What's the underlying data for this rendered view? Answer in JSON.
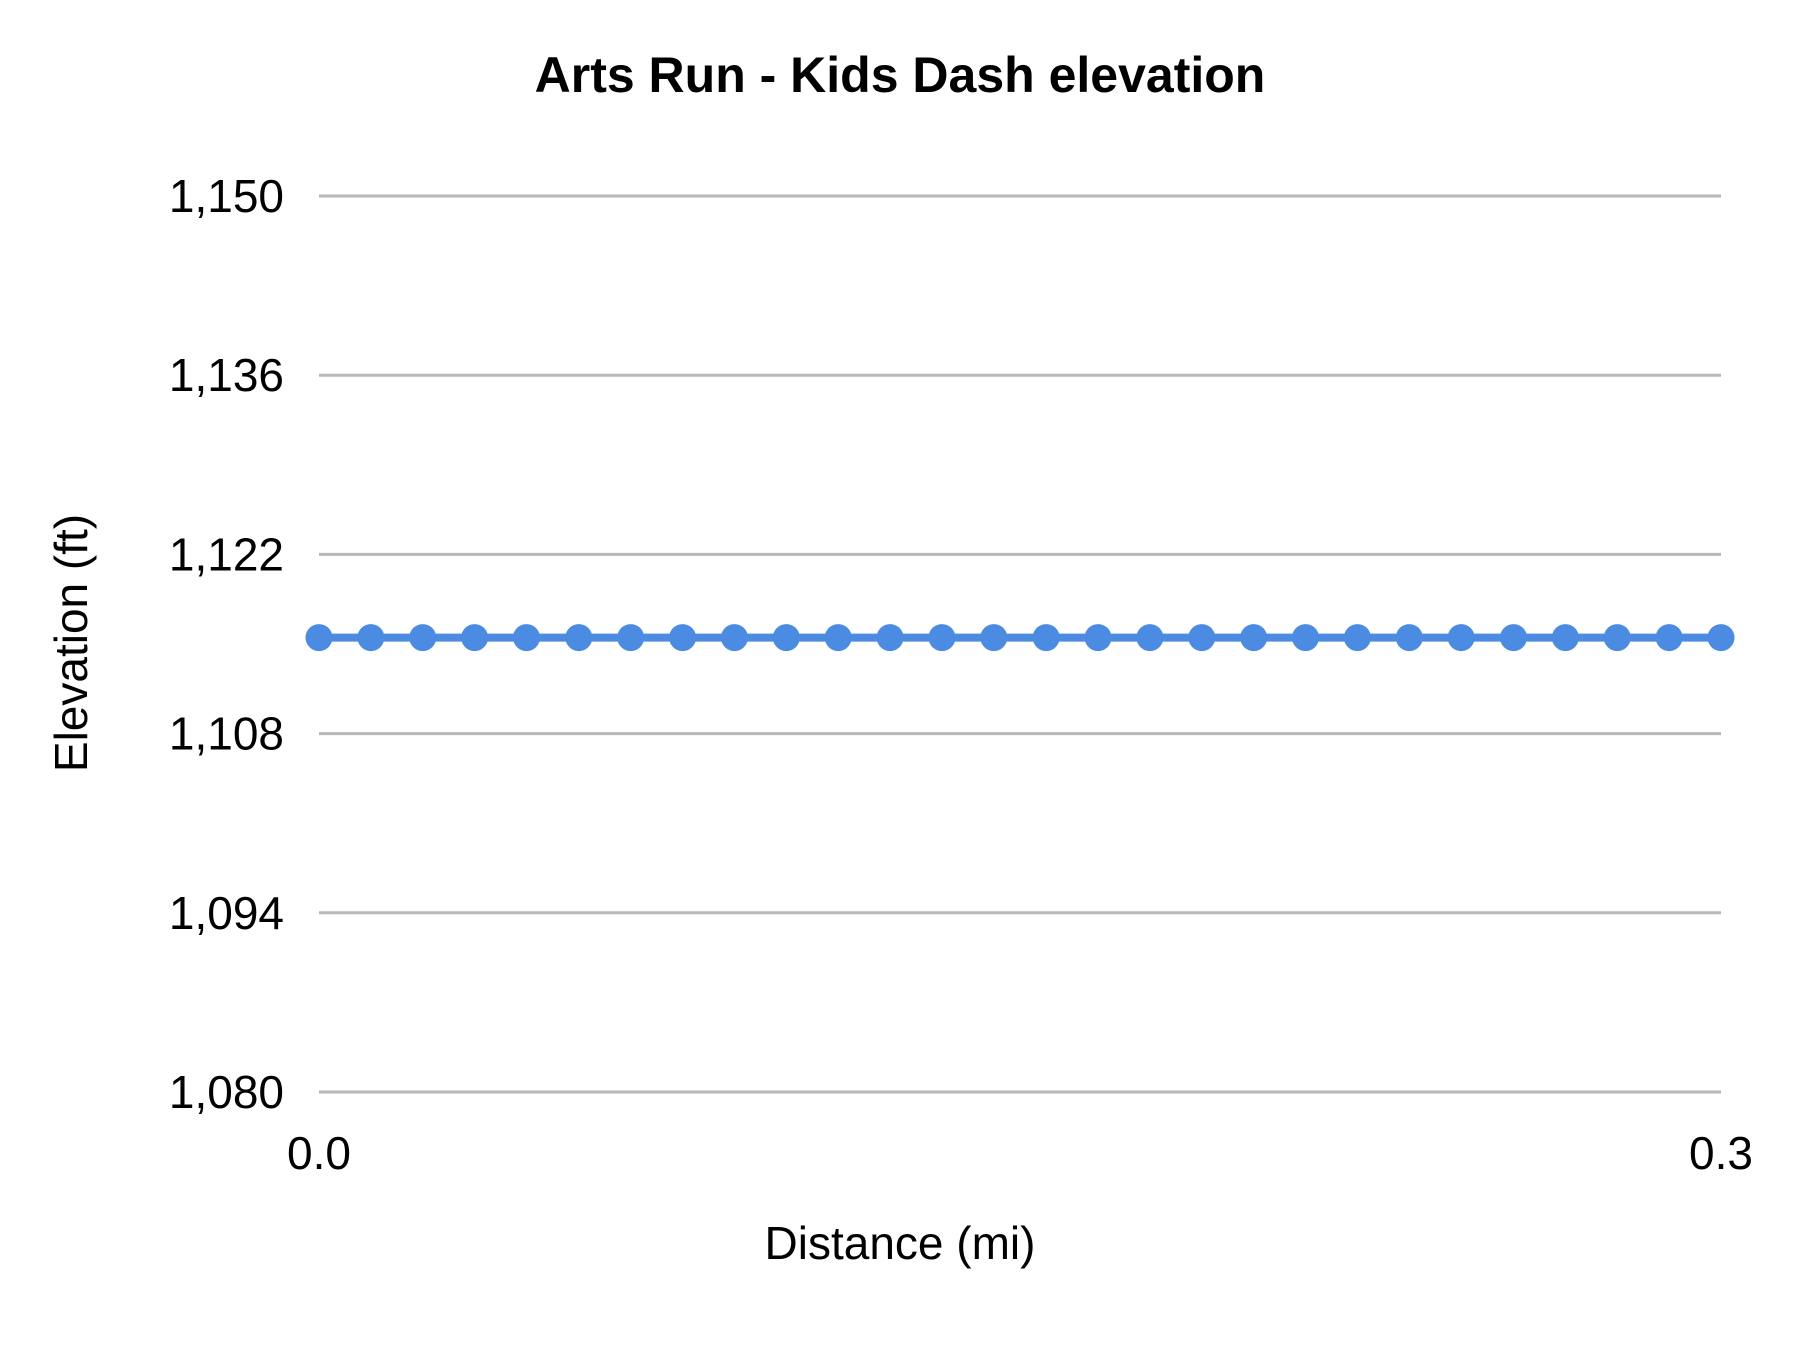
{
  "chart_data": {
    "type": "line",
    "title": "Arts Run - Kids Dash elevation",
    "xlabel": "Distance (mi)",
    "ylabel": "Elevation (ft)",
    "x": [
      0,
      0.0111,
      0.0222,
      0.0333,
      0.0444,
      0.0556,
      0.0667,
      0.0778,
      0.0889,
      0.1,
      0.1111,
      0.1222,
      0.1333,
      0.1444,
      0.1556,
      0.1667,
      0.1778,
      0.1889,
      0.2,
      0.2111,
      0.2222,
      0.2333,
      0.2444,
      0.2556,
      0.2667,
      0.2778,
      0.2889,
      0.3
    ],
    "values": [
      1115.5,
      1115.5,
      1115.5,
      1115.5,
      1115.5,
      1115.5,
      1115.5,
      1115.5,
      1115.5,
      1115.5,
      1115.5,
      1115.5,
      1115.5,
      1115.5,
      1115.5,
      1115.5,
      1115.5,
      1115.5,
      1115.5,
      1115.5,
      1115.5,
      1115.5,
      1115.5,
      1115.5,
      1115.5,
      1115.5,
      1115.5,
      1115.5
    ],
    "xlim": [
      0,
      0.3
    ],
    "ylim": [
      1080,
      1150
    ],
    "yticks": [
      {
        "value": 1080,
        "label": "1,080"
      },
      {
        "value": 1094,
        "label": "1,094"
      },
      {
        "value": 1108,
        "label": "1,108"
      },
      {
        "value": 1122,
        "label": "1,122"
      },
      {
        "value": 1136,
        "label": "1,136"
      },
      {
        "value": 1150,
        "label": "1,150"
      }
    ],
    "xticks": [
      {
        "value": 0.0,
        "label": "0.0"
      },
      {
        "value": 0.3,
        "label": "0.3"
      }
    ],
    "grid": true,
    "legend": "none",
    "series_color": "#4C8BE2",
    "gridline_color": "#b7b7b7",
    "point_radius": 13.5,
    "line_width": 8
  }
}
